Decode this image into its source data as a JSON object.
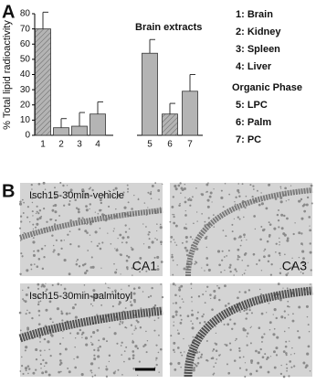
{
  "panel_labels": [
    "A",
    "B"
  ],
  "chart_data": {
    "type": "bar",
    "y_label": "% Total lipid radioactivity",
    "annotation": "Brain extracts",
    "categories": [
      "1",
      "2",
      "3",
      "4",
      "5",
      "6",
      "7"
    ],
    "values": [
      70,
      5,
      6,
      14,
      54,
      14,
      29
    ],
    "errors": [
      11,
      6,
      9,
      8,
      9,
      7,
      11
    ],
    "hatched": [
      true,
      false,
      false,
      false,
      false,
      true,
      false
    ],
    "color": "#b4b4b4",
    "ylim": [
      0,
      80
    ],
    "yticks": [
      0,
      10,
      20,
      30,
      40,
      50,
      60,
      70,
      80
    ]
  },
  "key": {
    "tissues": [
      "1: Brain",
      "2: Kidney",
      "3: Spleen",
      "4: Liver"
    ],
    "organic_heading": "Organic Phase",
    "organic": [
      "5: LPC",
      "6: Palm",
      "7: PC"
    ]
  },
  "micrographs": {
    "row_labels": [
      "Isch15-30min-vehicle",
      "Isch15-30min-palmitoyl"
    ],
    "column_labels": [
      "CA1",
      "CA3"
    ]
  }
}
